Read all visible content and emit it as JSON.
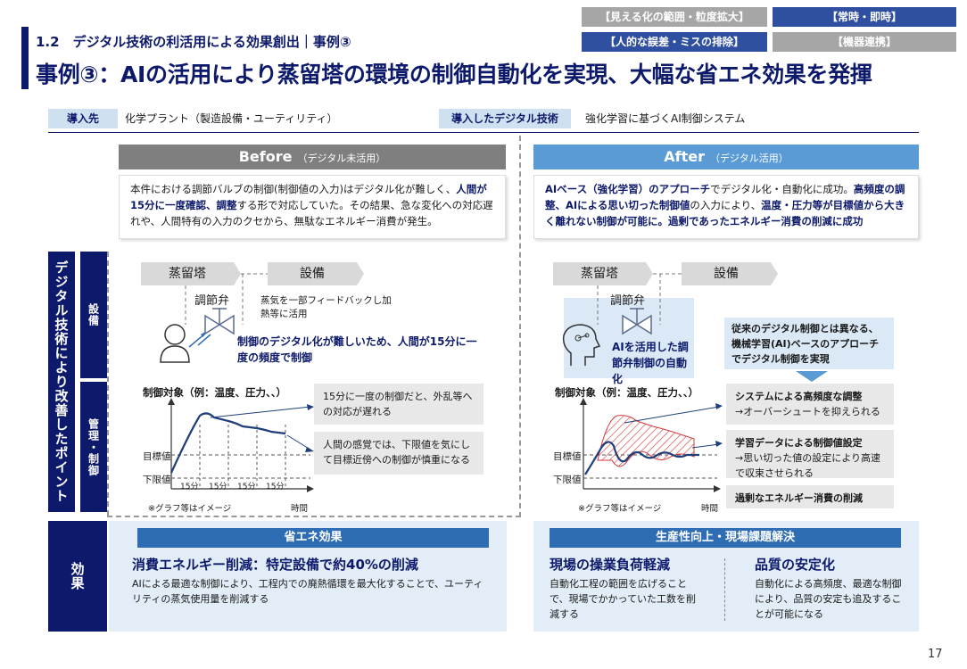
{
  "tags": {
    "t1": "【見える化の範囲・粒度拡大】",
    "t2": "【常時・即時】",
    "t3": "【人的な誤差・ミスの排除】",
    "t4": "【機器連携】"
  },
  "section_title": "1.2　デジタル技術の利活用による効果創出｜事例③",
  "main_title": "事例③：AIの活用により蒸留塔の環境の制御自動化を実現、大幅な省エネ効果を発揮",
  "info": {
    "intro_label": "導入先",
    "intro_value": "化学プラント（製造設備・ユーティリティ）",
    "tech_label": "導入したデジタル技術",
    "tech_value": "強化学習に基づくAI制御システム"
  },
  "before": {
    "title": "Before",
    "subtitle": "（デジタル未活用）",
    "desc_1": "本件における調節バルブの制御(制御値の入力)はデジタル化が難しく、",
    "desc_2": "人間が15分に一度確認、調整",
    "desc_3": "する形で対応していた。その結果、急な変化への対応遅れや、人間特有の入力のクセから、無駄なエネルギー消費が発生。",
    "proc_tower": "蒸留塔",
    "proc_equip": "設備",
    "valve": "調節弁",
    "steam_note": "蒸気を一部フィードバックし加熱等に活用",
    "human_note": "制御のデジタル化が難しいため、人間が15分に一度の頻度で制御",
    "chart_label": "制御対象（例：温度、圧力、、）",
    "box1": "15分に一度の制御だと、外乱等への対応が遅れる",
    "box2": "人間の感覚では、下限値を気にして目標近傍への制御が慎重になる",
    "target": "目標値",
    "lower": "下限値",
    "interval": "15分",
    "note": "※グラフ等はイメージ",
    "time": "時間"
  },
  "after": {
    "title": "After",
    "subtitle": "（デジタル活用）",
    "desc_1": "AIベース（強化学習）のアプローチ",
    "desc_2": "でデジタル化・自動化に成功。",
    "desc_3": "高頻度の調整、AIによる思い切った制御値",
    "desc_4": "の入力により、",
    "desc_5": "温度・圧力等が目標値から大きく離れない制御が可能に。過剰であったエネルギー消費の削減に成功",
    "proc_tower": "蒸留塔",
    "proc_equip": "設備",
    "valve": "調節弁",
    "ai_note": "AIを活用した調節弁制御の自動化",
    "callout": "従来のデジタル制御とは異なる、機械学習(AI)ベースのアプローチでデジタル制御を実現",
    "chart_label": "制御対象（例：温度、圧力、、）",
    "box1_title": "システムによる高頻度な調整",
    "box1_sub": "→オーバーシュートを抑えられる",
    "box2_title": "学習データによる制御値設定",
    "box2_sub": "→思い切った値の設定により高速で収束させられる",
    "box3_title": "過剰なエネルギー消費の削減",
    "target": "目標値",
    "lower": "下限値",
    "note": "※グラフ等はイメージ",
    "time": "時間"
  },
  "side": {
    "main": "デジタル技術により改善したポイント",
    "equip": "設備",
    "mgmt": "管理・制御",
    "effect": "効果"
  },
  "effects": {
    "left_head": "省エネ効果",
    "left_title": "消費エネルギー削減：特定設備で約40%の削減",
    "left_body": "AIによる最適な制御により、工程内での廃熱循環を最大化することで、ユーティリティの蒸気使用量を削減する",
    "right_head": "生産性向上・現場課題解決",
    "r1_title": "現場の操業負荷軽減",
    "r1_body": "自動化工程の範囲を広げることで、現場でかかっていた工数を削減する",
    "r2_title": "品質の安定化",
    "r2_body": "自動化による高頻度、最適な制御により、品質の安定も追及することが可能になる"
  },
  "page_number": "17"
}
